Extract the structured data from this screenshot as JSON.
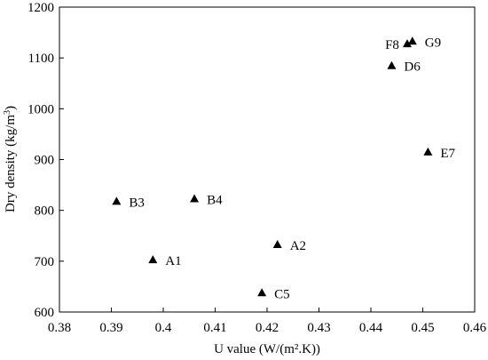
{
  "chart_data": {
    "type": "scatter",
    "xlabel": "U value (W/(m².K))",
    "ylabel_parts": [
      "Dry density (kg/m",
      "3",
      ")"
    ],
    "xlim": [
      0.38,
      0.46
    ],
    "ylim": [
      600,
      1200
    ],
    "xticks": [
      "0.38",
      "0.39",
      "0.4",
      "0.41",
      "0.42",
      "0.43",
      "0.44",
      "0.45",
      "0.46"
    ],
    "xtick_values": [
      0.38,
      0.39,
      0.4,
      0.41,
      0.42,
      0.43,
      0.44,
      0.45,
      0.46
    ],
    "yticks": [
      "600",
      "700",
      "800",
      "900",
      "1000",
      "1100",
      "1200"
    ],
    "ytick_values": [
      600,
      700,
      800,
      900,
      1000,
      1100,
      1200
    ],
    "grid": false,
    "marker": "triangle",
    "marker_color": "#000000",
    "points": [
      {
        "label": "A1",
        "x": 0.398,
        "y": 703,
        "label_side": "right"
      },
      {
        "label": "A2",
        "x": 0.422,
        "y": 733,
        "label_side": "right"
      },
      {
        "label": "B3",
        "x": 0.391,
        "y": 818,
        "label_side": "right"
      },
      {
        "label": "B4",
        "x": 0.406,
        "y": 823,
        "label_side": "right"
      },
      {
        "label": "C5",
        "x": 0.419,
        "y": 638,
        "label_side": "right"
      },
      {
        "label": "D6",
        "x": 0.444,
        "y": 1085,
        "label_side": "right"
      },
      {
        "label": "E7",
        "x": 0.451,
        "y": 915,
        "label_side": "right"
      },
      {
        "label": "F8",
        "x": 0.447,
        "y": 1128,
        "label_side": "left"
      },
      {
        "label": "G9",
        "x": 0.448,
        "y": 1133,
        "label_side": "right"
      }
    ]
  }
}
